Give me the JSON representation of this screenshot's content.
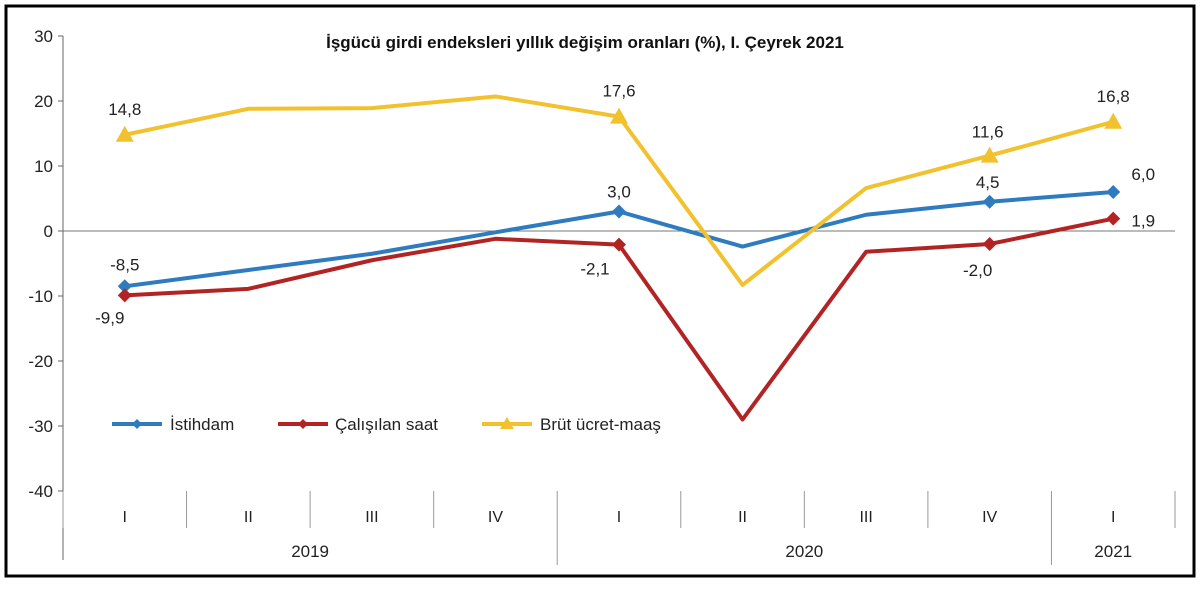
{
  "chart_data": {
    "type": "line",
    "title": "İşgücü girdi endeksleri yıllık değişim oranları (%), I. Çeyrek 2021",
    "xlabel": "",
    "ylabel": "",
    "ylim": [
      -40,
      30
    ],
    "yticks": [
      30,
      20,
      10,
      0,
      -10,
      -20,
      -30,
      -40
    ],
    "grid": false,
    "legend_position": "bottom-left",
    "categories": [
      "I",
      "II",
      "III",
      "IV",
      "I",
      "II",
      "III",
      "IV",
      "I"
    ],
    "year_groups": [
      {
        "label": "2019",
        "count": 4
      },
      {
        "label": "2020",
        "count": 4
      },
      {
        "label": "2021",
        "count": 1
      }
    ],
    "series": [
      {
        "name": "İstihdam",
        "color": "#2e7bbf",
        "marker": "diamond",
        "values": [
          -8.5,
          -6.0,
          -3.5,
          -0.2,
          3.0,
          -2.4,
          2.5,
          4.5,
          6.0
        ],
        "labels": [
          {
            "index": 0,
            "text": "-8,5"
          },
          {
            "index": 4,
            "text": "3,0"
          },
          {
            "index": 7,
            "text": "4,5"
          },
          {
            "index": 8,
            "text": "6,0"
          }
        ]
      },
      {
        "name": "Çalışılan saat",
        "color": "#b22424",
        "marker": "diamond",
        "values": [
          -9.9,
          -8.9,
          -4.5,
          -1.2,
          -2.1,
          -29.0,
          -3.2,
          -2.0,
          1.9
        ],
        "labels": [
          {
            "index": 0,
            "text": "-9,9"
          },
          {
            "index": 4,
            "text": "-2,1"
          },
          {
            "index": 7,
            "text": "-2,0"
          },
          {
            "index": 8,
            "text": "1,9"
          }
        ]
      },
      {
        "name": "Brüt ücret-maaş",
        "color": "#f2c12e",
        "marker": "triangle",
        "values": [
          14.8,
          18.8,
          18.9,
          20.7,
          17.6,
          -8.3,
          6.6,
          11.6,
          16.8
        ],
        "labels": [
          {
            "index": 0,
            "text": "14,8"
          },
          {
            "index": 4,
            "text": "17,6"
          },
          {
            "index": 7,
            "text": "11,6"
          },
          {
            "index": 8,
            "text": "16,8"
          }
        ]
      }
    ]
  }
}
